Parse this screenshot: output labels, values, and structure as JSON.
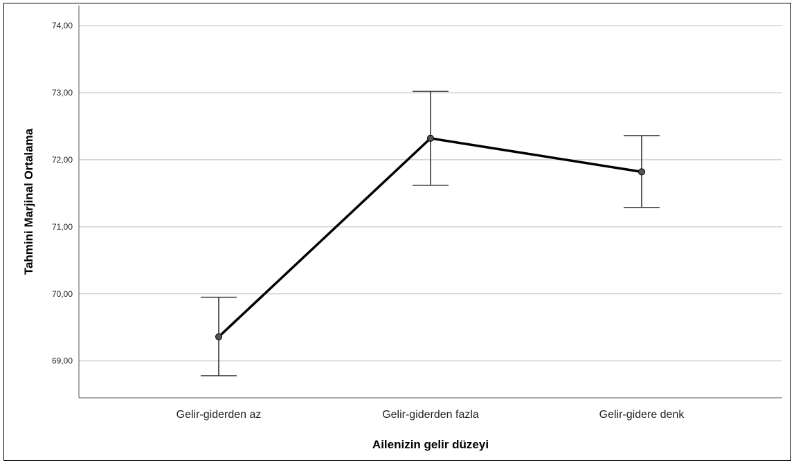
{
  "chart_data": {
    "type": "line",
    "xlabel": "Ailenizin gelir düzeyi",
    "ylabel": "Tahmini Marjinal Ortalama",
    "categories": [
      "Gelir-giderden az",
      "Gelir-giderden fazla",
      "Gelir-gidere denk"
    ],
    "series": [
      {
        "values": [
          69.36,
          72.32,
          71.82
        ],
        "error_lower": [
          68.78,
          71.62,
          71.29
        ],
        "error_upper": [
          69.95,
          73.02,
          72.36
        ]
      }
    ],
    "yticks": [
      "69,00",
      "70,00",
      "71,00",
      "72,00",
      "73,00",
      "74,00"
    ],
    "ytick_values": [
      69,
      70,
      71,
      72,
      73,
      74
    ],
    "ylim": [
      68.45,
      74.3
    ],
    "grid": true,
    "colors": {
      "line": "#000000",
      "grid": "#bdbdbd",
      "marker": "#555555"
    }
  }
}
